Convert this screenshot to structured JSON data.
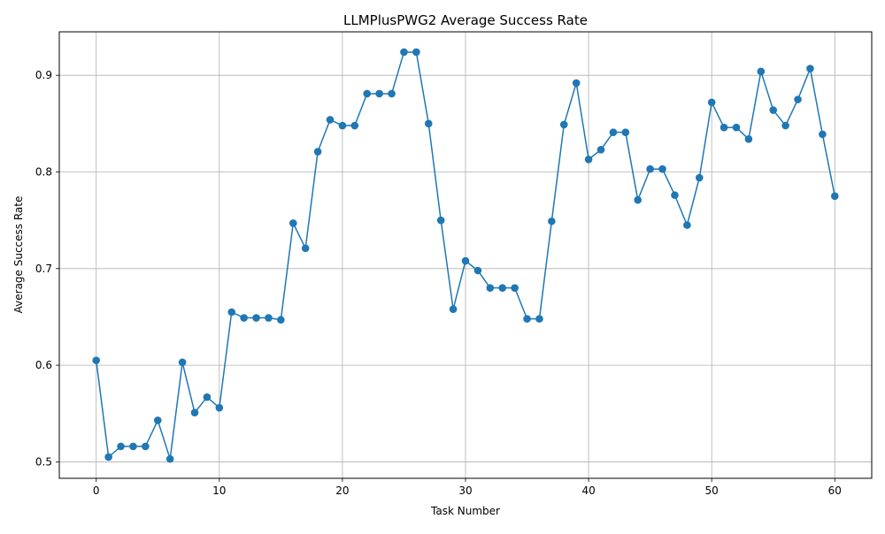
{
  "chart_data": {
    "type": "line",
    "title": "LLMPlusPWG2 Average Success Rate",
    "xlabel": "Task Number",
    "ylabel": "Average Success Rate",
    "xlim": [
      -3,
      63
    ],
    "ylim": [
      0.483,
      0.945
    ],
    "xticks": [
      0,
      10,
      20,
      30,
      40,
      50,
      60
    ],
    "yticks": [
      0.5,
      0.6,
      0.7,
      0.8,
      0.9
    ],
    "xtick_labels": [
      "0",
      "10",
      "20",
      "30",
      "40",
      "50",
      "60"
    ],
    "ytick_labels": [
      "0.5",
      "0.6",
      "0.7",
      "0.8",
      "0.9"
    ],
    "grid": true,
    "marker": "circle",
    "color": "#1f77b4",
    "series": [
      {
        "x": [
          0,
          1,
          2,
          3,
          4,
          5,
          6,
          7,
          8,
          9,
          10,
          11,
          12,
          13,
          14,
          15,
          16,
          17,
          18,
          19,
          20,
          21,
          22,
          23,
          24,
          25,
          26,
          27,
          28,
          29,
          30,
          31,
          32,
          33,
          34,
          35,
          36,
          37,
          38,
          39,
          40,
          41,
          42,
          43,
          44,
          45,
          46,
          47,
          48,
          49,
          50,
          51,
          52,
          53,
          54,
          55,
          56,
          57,
          58,
          59,
          60
        ],
        "y": [
          0.605,
          0.505,
          0.516,
          0.516,
          0.516,
          0.543,
          0.503,
          0.603,
          0.551,
          0.567,
          0.556,
          0.655,
          0.649,
          0.649,
          0.649,
          0.647,
          0.747,
          0.721,
          0.821,
          0.854,
          0.848,
          0.848,
          0.881,
          0.881,
          0.881,
          0.924,
          0.924,
          0.85,
          0.75,
          0.658,
          0.708,
          0.698,
          0.68,
          0.68,
          0.68,
          0.648,
          0.648,
          0.749,
          0.849,
          0.892,
          0.813,
          0.823,
          0.841,
          0.841,
          0.771,
          0.803,
          0.803,
          0.776,
          0.745,
          0.794,
          0.872,
          0.846,
          0.846,
          0.834,
          0.904,
          0.864,
          0.848,
          0.875,
          0.907,
          0.839,
          0.775
        ]
      }
    ]
  }
}
